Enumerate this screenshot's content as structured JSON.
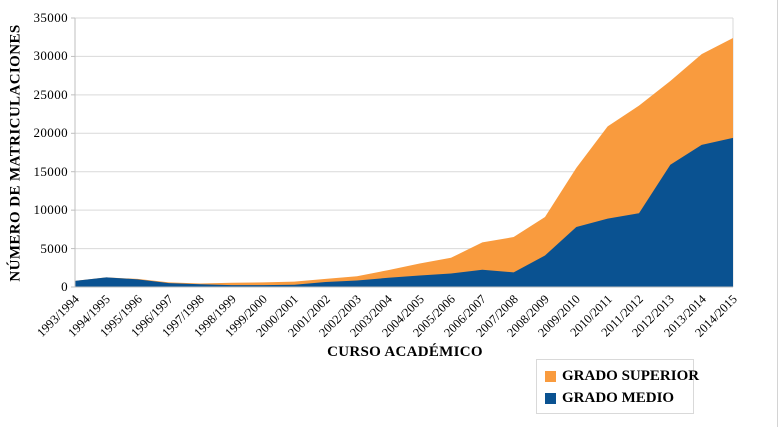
{
  "chart_data": {
    "type": "area",
    "stacked": true,
    "title": "",
    "xlabel": "CURSO ACADÉMICO",
    "ylabel": "NÚMERO DE MATRICULACIONES",
    "categories": [
      "1993/1994",
      "1994/1995",
      "1995/1996",
      "1996/1997",
      "1997/1998",
      "1998/1999",
      "1999/2000",
      "2000/2001",
      "2001/2002",
      "2002/2003",
      "2003/2004",
      "2004/2005",
      "2005/2006",
      "2006/2007",
      "2007/2008",
      "2008/2009",
      "2009/2010",
      "2010/2011",
      "2011/2012",
      "2012/2013",
      "2013/2014",
      "2014/2015"
    ],
    "series": [
      {
        "name": "GRADO MEDIO",
        "color": "#0a5291",
        "values": [
          800,
          1250,
          1000,
          500,
          350,
          250,
          250,
          300,
          650,
          850,
          1200,
          1500,
          1750,
          2250,
          1900,
          4100,
          7800,
          8900,
          9600,
          15900,
          18500,
          19400
        ]
      },
      {
        "name": "GRADO SUPERIOR",
        "color": "#f99b3e",
        "values": [
          0,
          0,
          50,
          100,
          100,
          300,
          350,
          400,
          400,
          550,
          1000,
          1550,
          2050,
          3550,
          4600,
          5000,
          7700,
          12000,
          14000,
          10900,
          11800,
          13000
        ]
      }
    ],
    "stacked_totals": [
      800,
      1250,
      1050,
      600,
      450,
      550,
      600,
      700,
      1050,
      1400,
      2200,
      3050,
      3800,
      5800,
      6500,
      9100,
      15500,
      20900,
      23600,
      26800,
      30300,
      32400
    ],
    "ylim": [
      0,
      35000
    ],
    "yticks": [
      0,
      5000,
      10000,
      15000,
      20000,
      25000,
      30000,
      35000
    ],
    "grid": true,
    "grid_color": "#d9d9d9",
    "axis_color": "#bfbfbf",
    "legend_position": "bottom-right",
    "legend_order": [
      1,
      0
    ]
  }
}
